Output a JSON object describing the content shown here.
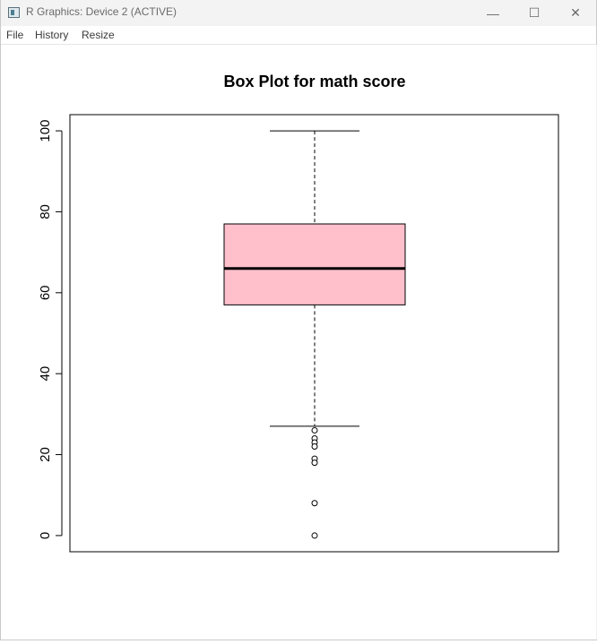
{
  "window": {
    "title": "R Graphics: Device 2 (ACTIVE)",
    "minimize_glyph": "—",
    "maximize_glyph": "☐",
    "close_glyph": "✕"
  },
  "menu": {
    "items": [
      "File",
      "History",
      "Resize"
    ]
  },
  "chart_data": {
    "type": "boxplot",
    "title": "Box Plot for math score",
    "xlabel": "",
    "ylabel": "",
    "ylim": [
      -4,
      104
    ],
    "yticks": [
      0,
      20,
      40,
      60,
      80,
      100
    ],
    "box": {
      "whisker_low": 27,
      "q1": 57,
      "median": 66,
      "q3": 77,
      "whisker_high": 100
    },
    "outliers": [
      26,
      24,
      23,
      22,
      19,
      18,
      8,
      0
    ],
    "fill_color": "#ffc0cb",
    "grid": false
  }
}
